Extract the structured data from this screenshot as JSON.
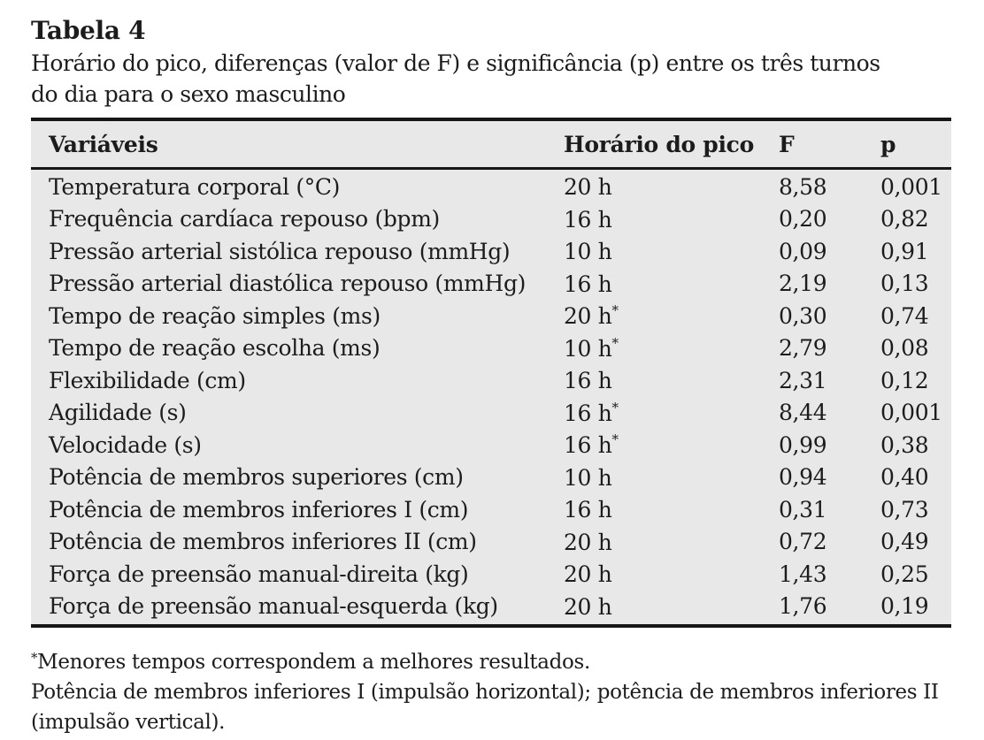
{
  "title": "Tabela 4",
  "caption_lines": [
    "Horário do pico, diferenças (valor de F) e significância (p) entre os três turnos",
    "do dia para o sexo masculino"
  ],
  "columns": {
    "variable": "Variáveis",
    "peak": "Horário do pico",
    "f": "F",
    "p": "p"
  },
  "rows": [
    {
      "variable": "Temperatura corporal (°C)",
      "peak": "20 h",
      "star": "",
      "f": "8,58",
      "p": "0,001"
    },
    {
      "variable": "Frequência cardíaca repouso (bpm)",
      "peak": "16 h",
      "star": "",
      "f": "0,20",
      "p": "0,82"
    },
    {
      "variable": "Pressão arterial sistólica repouso (mmHg)",
      "peak": "10 h",
      "star": "",
      "f": "0,09",
      "p": "0,91"
    },
    {
      "variable": "Pressão arterial diastólica repouso (mmHg)",
      "peak": "16 h",
      "star": "",
      "f": "2,19",
      "p": "0,13"
    },
    {
      "variable": "Tempo de reação simples (ms)",
      "peak": "20 h",
      "star": "*",
      "f": "0,30",
      "p": "0,74"
    },
    {
      "variable": "Tempo de reação escolha (ms)",
      "peak": "10 h",
      "star": "*",
      "f": "2,79",
      "p": "0,08"
    },
    {
      "variable": "Flexibilidade (cm)",
      "peak": "16 h",
      "star": "",
      "f": "2,31",
      "p": "0,12"
    },
    {
      "variable": "Agilidade (s)",
      "peak": "16 h",
      "star": "*",
      "f": "8,44",
      "p": "0,001"
    },
    {
      "variable": "Velocidade (s)",
      "peak": "16 h",
      "star": "*",
      "f": "0,99",
      "p": "0,38"
    },
    {
      "variable": "Potência de membros superiores (cm)",
      "peak": "10 h",
      "star": "",
      "f": "0,94",
      "p": "0,40"
    },
    {
      "variable": "Potência de membros inferiores I (cm)",
      "peak": "16 h",
      "star": "",
      "f": "0,31",
      "p": "0,73"
    },
    {
      "variable": "Potência de membros inferiores II (cm)",
      "peak": "20 h",
      "star": "",
      "f": "0,72",
      "p": "0,49"
    },
    {
      "variable": "Força de preensão manual-direita (kg)",
      "peak": "20 h",
      "star": "",
      "f": "1,43",
      "p": "0,25"
    },
    {
      "variable": "Força de preensão manual-esquerda (kg)",
      "peak": "20 h",
      "star": "",
      "f": "1,76",
      "p": "0,19"
    }
  ],
  "footnotes": {
    "star_marker": "*",
    "star_text": "Menores tempos correspondem a melhores resultados.",
    "lines": [
      "Potência de membros inferiores I (impulsão horizontal); potência de membros inferiores II",
      "(impulsão vertical)."
    ]
  },
  "colors": {
    "table_background": "#e8e8e8",
    "rule": "#161616",
    "text": "#1c1c1c",
    "page_background": "#ffffff"
  }
}
